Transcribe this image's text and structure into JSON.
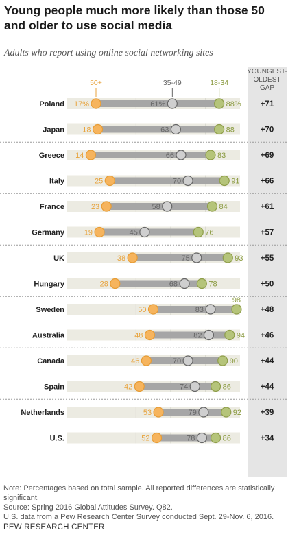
{
  "title": "Young people much more likely than those 50 and older to use social media",
  "subtitle": "Adults who report using online social networking sites",
  "gap_header": [
    "YOUNGEST-",
    "OLDEST",
    "GAP"
  ],
  "notes": [
    "Note: Percentages based on total sample. All reported differences are statistically significant.",
    "Source: Spring 2016 Global Attitudes Survey. Q82.",
    "U.S. data from a Pew Research Center Survey conducted Sept. 29-Nov. 6, 2016."
  ],
  "source_org": "PEW RESEARCH CENTER",
  "colors": {
    "age_50_plus": "#f6b45d",
    "age_35_49": "#cfcfcf",
    "age_18_34": "#b5c47a",
    "label_50_plus": "#e8a33c",
    "label_35_49": "#666666",
    "label_18_34": "#8a9a3f",
    "connector": "#a6a6a6",
    "row_band": "#ecebe2",
    "gap_column": "#e5e5e5"
  },
  "chart_data": {
    "type": "dot-plot",
    "series": [
      {
        "name": "50+",
        "key": "age_50_plus"
      },
      {
        "name": "35-49",
        "key": "age_35_49"
      },
      {
        "name": "18-34",
        "key": "age_18_34"
      }
    ],
    "rows": [
      {
        "country": "Poland",
        "v50": 17,
        "v35": 61,
        "v18": 88,
        "l50": "17%",
        "l35": "61%",
        "l18": "88%",
        "gap": "+71"
      },
      {
        "country": "Japan",
        "v50": 18,
        "v35": 63,
        "v18": 88,
        "l50": "18",
        "l35": "63",
        "l18": "88",
        "gap": "+70"
      },
      {
        "country": "Greece",
        "v50": 14,
        "v35": 66,
        "v18": 83,
        "l50": "14",
        "l35": "66",
        "l18": "83",
        "gap": "+69"
      },
      {
        "country": "Italy",
        "v50": 25,
        "v35": 70,
        "v18": 91,
        "l50": "25",
        "l35": "70",
        "l18": "91",
        "gap": "+66"
      },
      {
        "country": "France",
        "v50": 23,
        "v35": 58,
        "v18": 84,
        "l50": "23",
        "l35": "58",
        "l18": "84",
        "gap": "+61"
      },
      {
        "country": "Germany",
        "v50": 19,
        "v35": 45,
        "v18": 76,
        "l50": "19",
        "l35": "45",
        "l18": "76",
        "gap": "+57"
      },
      {
        "country": "UK",
        "v50": 38,
        "v35": 75,
        "v18": 93,
        "l50": "38",
        "l35": "75",
        "l18": "93",
        "gap": "+55"
      },
      {
        "country": "Hungary",
        "v50": 28,
        "v35": 68,
        "v18": 78,
        "l50": "28",
        "l35": "68",
        "l18": "78",
        "gap": "+50"
      },
      {
        "country": "Sweden",
        "v50": 50,
        "v35": 83,
        "v18": 98,
        "l50": "50",
        "l35": "83",
        "l18": "98",
        "gap": "+48"
      },
      {
        "country": "Australia",
        "v50": 48,
        "v35": 82,
        "v18": 94,
        "l50": "48",
        "l35": "82",
        "l18": "94",
        "gap": "+46"
      },
      {
        "country": "Canada",
        "v50": 46,
        "v35": 70,
        "v18": 90,
        "l50": "46",
        "l35": "70",
        "l18": "90",
        "gap": "+44"
      },
      {
        "country": "Spain",
        "v50": 42,
        "v35": 74,
        "v18": 86,
        "l50": "42",
        "l35": "74",
        "l18": "86",
        "gap": "+44"
      },
      {
        "country": "Netherlands",
        "v50": 53,
        "v35": 79,
        "v18": 92,
        "l50": "53",
        "l35": "79",
        "l18": "92",
        "gap": "+39"
      },
      {
        "country": "U.S.",
        "v50": 52,
        "v35": 78,
        "v18": 86,
        "l50": "52",
        "l35": "78",
        "l18": "86",
        "gap": "+34"
      }
    ],
    "xlim": [
      0,
      100
    ],
    "group_separators_after": [
      "Japan",
      "Italy",
      "Germany",
      "Hungary",
      "Australia",
      "Spain"
    ]
  }
}
